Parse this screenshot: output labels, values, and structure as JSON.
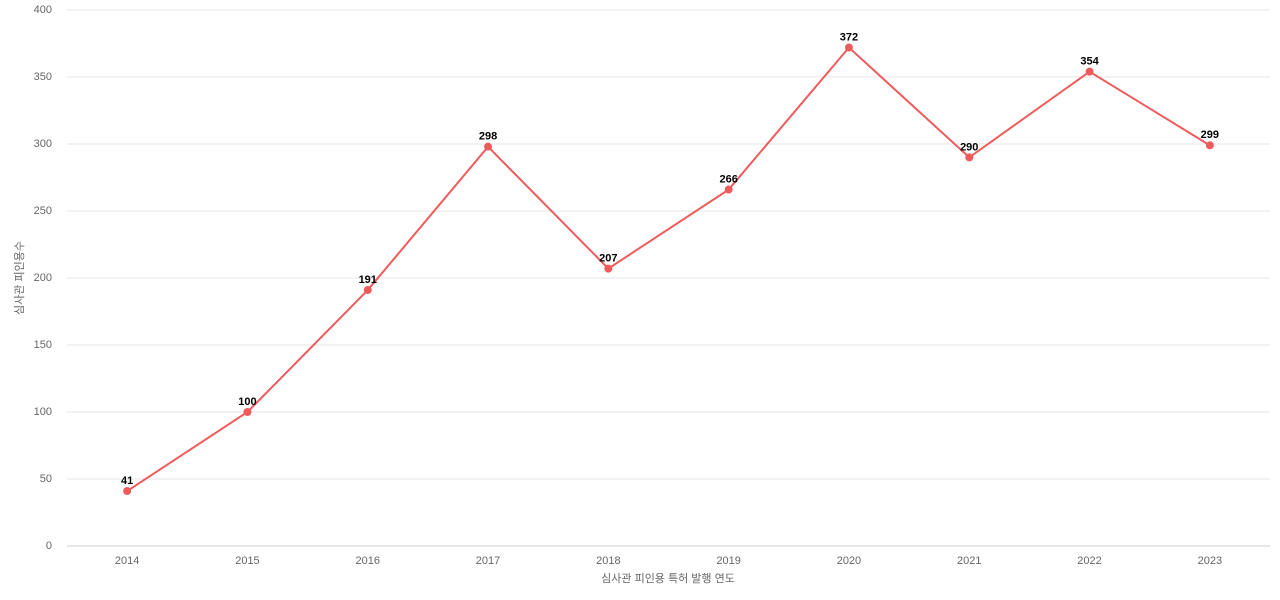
{
  "chart_data": {
    "type": "line",
    "x_label": "심사관 피인용 특허 발행 연도",
    "y_label": "심사관 피인용수",
    "categories": [
      "2014",
      "2015",
      "2016",
      "2017",
      "2018",
      "2019",
      "2020",
      "2021",
      "2022",
      "2023"
    ],
    "series": [
      {
        "color": "#ef5b5b",
        "values": [
          41,
          100,
          191,
          298,
          207,
          266,
          372,
          290,
          354,
          299
        ]
      }
    ],
    "ylim": [
      0,
      400
    ],
    "yticks": [
      0,
      50,
      100,
      150,
      200,
      250,
      300,
      350,
      400
    ],
    "grid": true
  }
}
